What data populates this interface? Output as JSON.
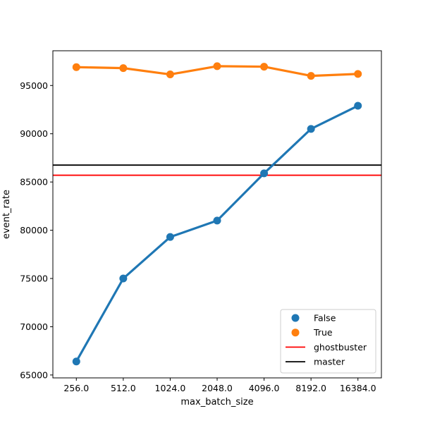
{
  "chart_data": {
    "type": "line",
    "xlabel": "max_batch_size",
    "ylabel": "event_rate",
    "categories": [
      "256.0",
      "512.0",
      "1024.0",
      "2048.0",
      "4096.0",
      "8192.0",
      "16384.0"
    ],
    "series": [
      {
        "name": "False",
        "color": "#1f77b4",
        "values": [
          66400,
          75000,
          79300,
          81000,
          85900,
          90500,
          92900
        ]
      },
      {
        "name": "True",
        "color": "#ff7f0e",
        "values": [
          96900,
          96800,
          96150,
          97000,
          96950,
          96000,
          96200
        ]
      }
    ],
    "hlines": [
      {
        "name": "ghostbuster",
        "color": "#ff0000",
        "value": 85700
      },
      {
        "name": "master",
        "color": "#000000",
        "value": 86750
      }
    ],
    "ylim": [
      64700,
      98600
    ],
    "yticks": [
      65000,
      70000,
      75000,
      80000,
      85000,
      90000,
      95000
    ],
    "legend_position": "lower-right",
    "grid": false
  }
}
